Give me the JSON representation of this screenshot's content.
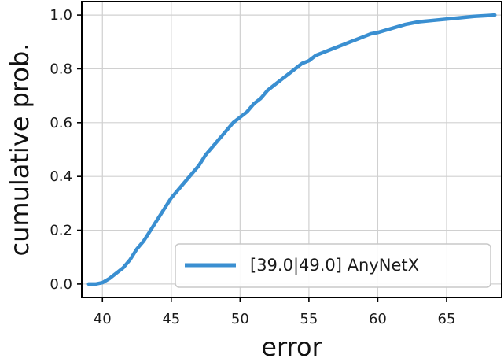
{
  "chart_data": {
    "type": "line",
    "title": "",
    "xlabel": "error",
    "ylabel": "cumulative prob.",
    "xlim": [
      38.5,
      69
    ],
    "ylim": [
      -0.05,
      1.05
    ],
    "xticks": [
      40,
      45,
      50,
      55,
      60,
      65
    ],
    "yticks": [
      0.0,
      0.2,
      0.4,
      0.6,
      0.8,
      1.0
    ],
    "xtick_labels": [
      "40",
      "45",
      "50",
      "55",
      "60",
      "65"
    ],
    "ytick_labels": [
      "0.0",
      "0.2",
      "0.4",
      "0.6",
      "0.8",
      "1.0"
    ],
    "grid": true,
    "legend_position": "lower-right",
    "series": [
      {
        "name": "[39.0|49.0] AnyNetX",
        "color": "#3a8fd1",
        "x": [
          39.0,
          39.5,
          40.0,
          40.5,
          41.0,
          41.5,
          42.0,
          42.5,
          43.0,
          43.5,
          44.0,
          44.5,
          45.0,
          45.5,
          46.0,
          46.5,
          47.0,
          47.5,
          48.0,
          48.5,
          49.0,
          49.5,
          50.0,
          50.5,
          51.0,
          51.5,
          52.0,
          52.5,
          53.0,
          53.5,
          54.0,
          54.5,
          55.0,
          55.5,
          56.0,
          56.5,
          57.0,
          57.5,
          58.0,
          58.5,
          59.0,
          59.5,
          60.0,
          61.0,
          62.0,
          63.0,
          64.0,
          65.0,
          66.0,
          67.0,
          68.0,
          68.5
        ],
        "y": [
          0.0,
          0.0,
          0.005,
          0.02,
          0.04,
          0.06,
          0.09,
          0.13,
          0.16,
          0.2,
          0.24,
          0.28,
          0.32,
          0.35,
          0.38,
          0.41,
          0.44,
          0.48,
          0.51,
          0.54,
          0.57,
          0.6,
          0.62,
          0.64,
          0.67,
          0.69,
          0.72,
          0.74,
          0.76,
          0.78,
          0.8,
          0.82,
          0.83,
          0.85,
          0.86,
          0.87,
          0.88,
          0.89,
          0.9,
          0.91,
          0.92,
          0.93,
          0.935,
          0.95,
          0.965,
          0.975,
          0.98,
          0.985,
          0.99,
          0.995,
          0.998,
          1.0
        ]
      }
    ]
  }
}
